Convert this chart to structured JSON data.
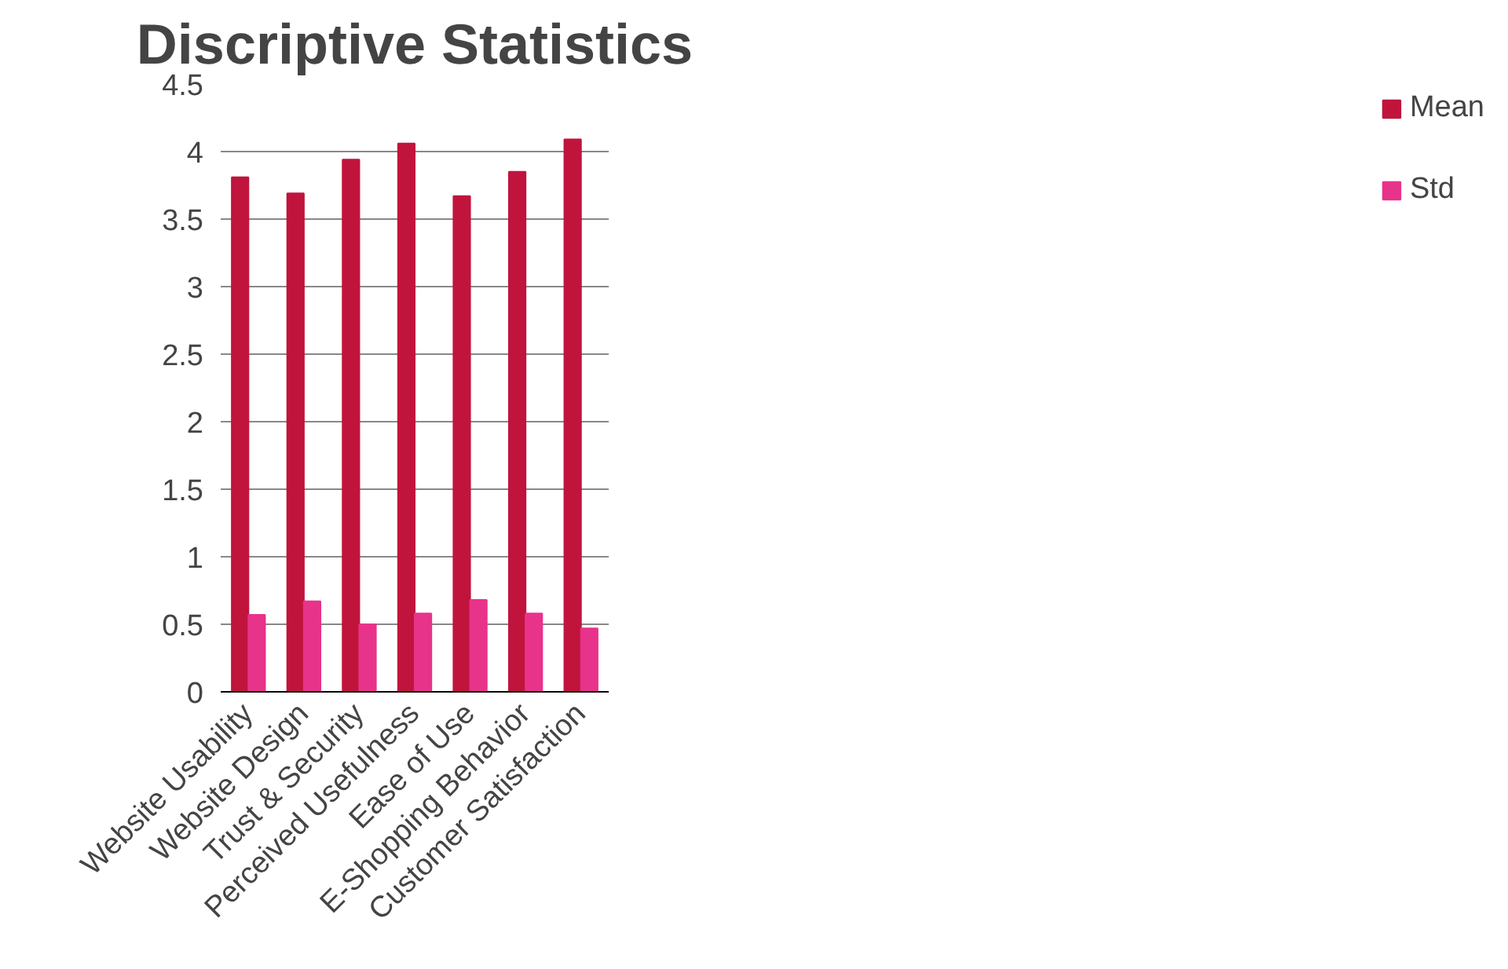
{
  "chart_data": {
    "type": "bar",
    "title": "Discriptive Statistics",
    "categories": [
      "Website Usability",
      "Website Design",
      "Trust & Security",
      "Perceived Usefulness",
      "Ease of Use",
      "E-Shopping Behavior",
      "Customer Satisfaction"
    ],
    "series": [
      {
        "name": "Mean",
        "color": "#c0143c",
        "values": [
          3.81,
          3.69,
          3.94,
          4.06,
          3.67,
          3.85,
          4.09
        ]
      },
      {
        "name": "Std",
        "color": "#e8338a",
        "values": [
          0.57,
          0.67,
          0.5,
          0.58,
          0.68,
          0.58,
          0.47
        ]
      }
    ],
    "ylim": [
      0,
      4.5
    ],
    "yticks": [
      0,
      0.5,
      1,
      1.5,
      2,
      2.5,
      3,
      3.5,
      4,
      4.5
    ],
    "grid": "y",
    "legend": "right"
  }
}
